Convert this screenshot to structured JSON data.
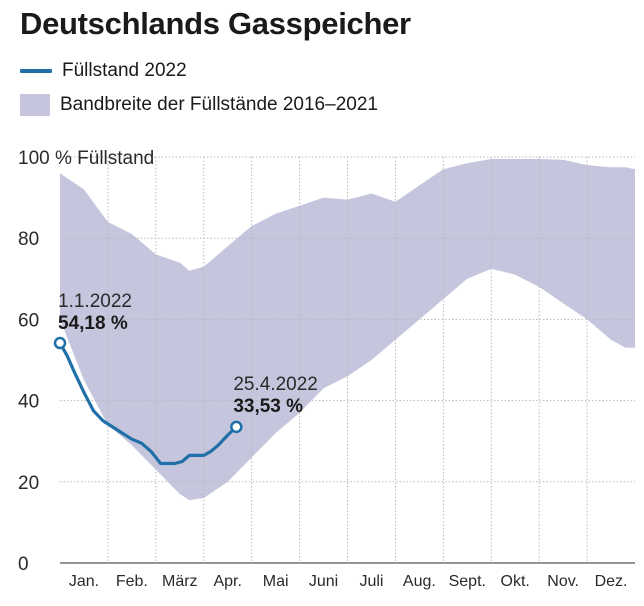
{
  "title": "Deutschlands Gasspeicher",
  "legend": {
    "line_label": "Füllstand 2022",
    "band_label": "Bandbreite der Füllstände 2016–2021"
  },
  "colors": {
    "line": "#1f6fa8",
    "band": "#c5c6dd",
    "grid": "#b9b9b9",
    "axis": "#555555"
  },
  "chart_data": {
    "type": "area",
    "title": "Deutschlands Gasspeicher",
    "ylabel": "100 % Füllstand",
    "xlabel": "",
    "ylim": [
      0,
      100
    ],
    "yticks": [
      {
        "value": 0,
        "label": "0"
      },
      {
        "value": 20,
        "label": "20"
      },
      {
        "value": 40,
        "label": "40"
      },
      {
        "value": 60,
        "label": "60"
      },
      {
        "value": 80,
        "label": "80"
      },
      {
        "value": 100,
        "label": "100 % Füllstand"
      }
    ],
    "xlim": [
      0,
      12
    ],
    "months": [
      "Jan.",
      "Feb.",
      "März",
      "Apr.",
      "Mai",
      "Juni",
      "Juli",
      "Aug.",
      "Sept.",
      "Okt.",
      "Nov.",
      "Dez."
    ],
    "band": {
      "name": "Bandbreite der Füllstände 2016–2021",
      "x": [
        0,
        0.5,
        1,
        1.5,
        2,
        2.5,
        2.7,
        3,
        3.5,
        4,
        4.5,
        5,
        5.5,
        6,
        6.5,
        7,
        7.5,
        8,
        8.5,
        9,
        9.5,
        10,
        10.5,
        11,
        11.5,
        11.8,
        12
      ],
      "upper": [
        96,
        92,
        84,
        81,
        76,
        74,
        72,
        73,
        78,
        83,
        86,
        88,
        90,
        89.5,
        91,
        89,
        93,
        97,
        98.5,
        99.5,
        99.5,
        99.5,
        99.3,
        98,
        97.5,
        97.5,
        97
      ],
      "lower": [
        60,
        45,
        34,
        29,
        23,
        17,
        15.5,
        16,
        20,
        26,
        32,
        37,
        43,
        46,
        50,
        55,
        60,
        65,
        70,
        72.5,
        71,
        68,
        64,
        60,
        55,
        53,
        53
      ]
    },
    "series": [
      {
        "name": "Füllstand 2022",
        "x": [
          0,
          0.15,
          0.3,
          0.5,
          0.7,
          0.9,
          1.1,
          1.3,
          1.5,
          1.7,
          1.9,
          2.0,
          2.1,
          2.25,
          2.4,
          2.55,
          2.7,
          2.85,
          3.0,
          3.15,
          3.3,
          3.5,
          3.68
        ],
        "y": [
          54.18,
          51,
          47,
          42,
          37.5,
          35,
          33.5,
          32,
          30.5,
          29.5,
          27.5,
          26,
          24.5,
          24.5,
          24.5,
          25,
          26.5,
          26.5,
          26.5,
          27.5,
          29,
          31.5,
          33.53
        ]
      }
    ],
    "annotations": [
      {
        "date": "1.1.2022",
        "value": "54,18 %",
        "x": 0,
        "y": 54.18
      },
      {
        "date": "25.4.2022",
        "value": "33,53 %",
        "x": 3.68,
        "y": 33.53
      }
    ]
  }
}
